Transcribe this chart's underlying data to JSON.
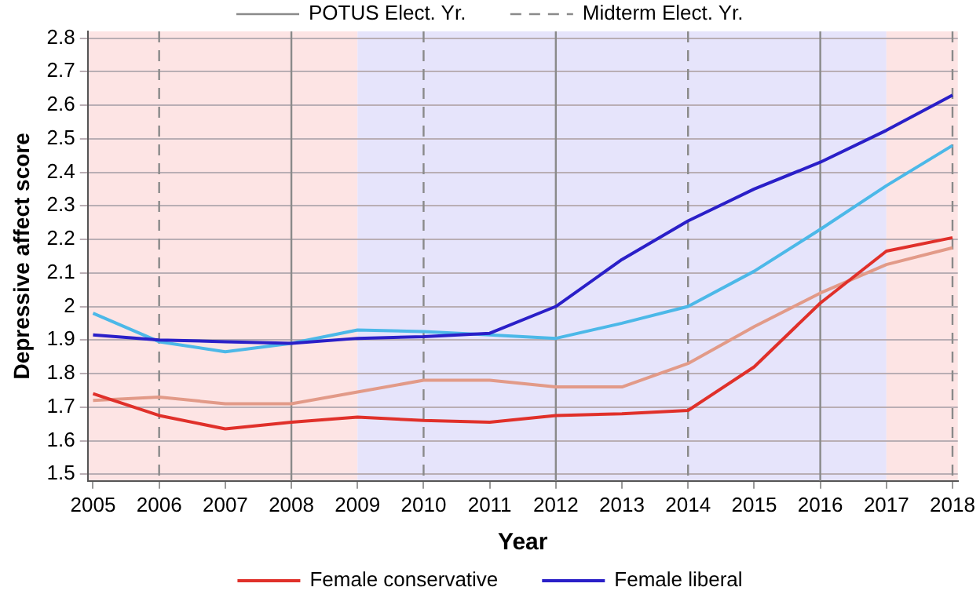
{
  "chart_data": {
    "type": "line",
    "xlabel": "Year",
    "ylabel": "Depressive affect score",
    "x": [
      2005,
      2006,
      2007,
      2008,
      2009,
      2010,
      2011,
      2012,
      2013,
      2014,
      2015,
      2016,
      2017,
      2018
    ],
    "series": [
      {
        "name": "Female conservative",
        "color": "#e0302a",
        "values": [
          1.74,
          1.675,
          1.635,
          1.655,
          1.67,
          1.66,
          1.655,
          1.675,
          1.68,
          1.69,
          1.82,
          2.01,
          2.165,
          2.205
        ]
      },
      {
        "name": "Female liberal",
        "color": "#2a1fc8",
        "values": [
          1.915,
          1.9,
          1.895,
          1.89,
          1.905,
          1.91,
          1.92,
          2.0,
          2.14,
          2.255,
          2.35,
          2.43,
          2.525,
          2.63
        ]
      },
      {
        "color": "#4cb8e8",
        "values": [
          1.98,
          1.895,
          1.865,
          1.89,
          1.93,
          1.925,
          1.915,
          1.905,
          1.95,
          2.0,
          2.105,
          2.23,
          2.36,
          2.48
        ]
      },
      {
        "color": "#e29a88",
        "values": [
          1.72,
          1.73,
          1.71,
          1.71,
          1.745,
          1.78,
          1.78,
          1.76,
          1.76,
          1.83,
          1.94,
          2.04,
          2.125,
          2.175
        ]
      }
    ],
    "xlim": [
      2004.92,
      2018.08
    ],
    "xticks": [
      2005,
      2006,
      2007,
      2008,
      2009,
      2010,
      2011,
      2012,
      2013,
      2014,
      2015,
      2016,
      2017,
      2018
    ],
    "ylim": [
      1.48,
      2.82
    ],
    "yticks": [
      1.5,
      1.6,
      1.7,
      1.8,
      1.9,
      2.0,
      2.1,
      2.2,
      2.3,
      2.4,
      2.5,
      2.6,
      2.7,
      2.8
    ],
    "bands": [
      {
        "axis": "x",
        "from": 2004.92,
        "to": 2009,
        "color": "#fde4e4"
      },
      {
        "axis": "x",
        "from": 2009,
        "to": 2017,
        "color": "#e6e4fb"
      },
      {
        "axis": "x",
        "from": 2017,
        "to": 2018.08,
        "color": "#fde4e4"
      }
    ],
    "ref_lines": [
      {
        "axis": "x",
        "value": 2006,
        "label": "Midterm Elect. Yr.",
        "line_style": "dashed",
        "color": "#8a8a8a"
      },
      {
        "axis": "x",
        "value": 2008,
        "label": "POTUS Elect. Yr.",
        "line_style": "solid",
        "color": "#8a8a8a"
      },
      {
        "axis": "x",
        "value": 2010,
        "line_style": "dashed",
        "color": "#8a8a8a"
      },
      {
        "axis": "x",
        "value": 2012,
        "line_style": "solid",
        "color": "#8a8a8a"
      },
      {
        "axis": "x",
        "value": 2014,
        "line_style": "dashed",
        "color": "#8a8a8a"
      },
      {
        "axis": "x",
        "value": 2016,
        "line_style": "solid",
        "color": "#8a8a8a"
      },
      {
        "axis": "x",
        "value": 2018,
        "line_style": "dashed",
        "color": "#8a8a8a"
      }
    ],
    "grid": "y",
    "legend": "bottom",
    "marker": "none",
    "line_style": "solid"
  }
}
